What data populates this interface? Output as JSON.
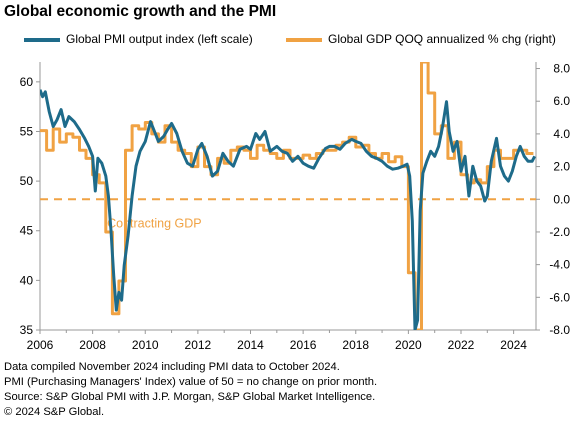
{
  "title": "Global economic growth and the PMI",
  "legend": {
    "pmi": "Global PMI output index (left scale)",
    "gdp": "Global GDP QOQ annualized % chg (right)"
  },
  "colors": {
    "pmi": "#1e6b8a",
    "gdp": "#f0a243",
    "text": "#000000",
    "axis": "#999999"
  },
  "annotation": "Contracting GDP",
  "notes": [
    "Data compiled November 2024 including PMI data to October 2024.",
    "PMI (Purchasing Managers' Index) value of 50 = no change on prior month.",
    "Source: S&P Global PMI with J.P. Morgan, S&P Global Market Intelligence.",
    "© 2024 S&P Global."
  ],
  "chart_data": {
    "type": "line",
    "title": "Global economic growth and the PMI",
    "x_ticks": [
      "2006",
      "2008",
      "2010",
      "2012",
      "2014",
      "2016",
      "2018",
      "2020",
      "2022",
      "2024"
    ],
    "xlim": [
      2006.0,
      2024.85
    ],
    "y_left": {
      "ticks": [
        "35",
        "40",
        "45",
        "50",
        "55",
        "60"
      ],
      "lim": [
        35,
        62
      ]
    },
    "y_right": {
      "ticks": [
        "-8.0",
        "-6.0",
        "-4.0",
        "-2.0",
        "0.0",
        "2.0",
        "4.0",
        "6.0",
        "8.0"
      ],
      "lim": [
        -8,
        8.4
      ]
    },
    "reference_line": {
      "axis": "right",
      "value": 0.0,
      "label": "Contracting GDP"
    },
    "series": [
      {
        "name": "Global PMI output index (left scale)",
        "axis": "left",
        "points": [
          [
            2006.0,
            59.2
          ],
          [
            2006.1,
            58.5
          ],
          [
            2006.2,
            59.0
          ],
          [
            2006.35,
            57.0
          ],
          [
            2006.5,
            55.5
          ],
          [
            2006.65,
            56.2
          ],
          [
            2006.8,
            57.2
          ],
          [
            2006.95,
            55.5
          ],
          [
            2007.1,
            56.5
          ],
          [
            2007.3,
            56.0
          ],
          [
            2007.5,
            55.2
          ],
          [
            2007.7,
            54.3
          ],
          [
            2007.85,
            53.5
          ],
          [
            2008.0,
            52.5
          ],
          [
            2008.1,
            49.0
          ],
          [
            2008.2,
            52.3
          ],
          [
            2008.35,
            51.8
          ],
          [
            2008.5,
            50.5
          ],
          [
            2008.6,
            48.5
          ],
          [
            2008.7,
            45.0
          ],
          [
            2008.8,
            40.5
          ],
          [
            2008.9,
            37.0
          ],
          [
            2009.0,
            38.8
          ],
          [
            2009.1,
            38.0
          ],
          [
            2009.2,
            41.5
          ],
          [
            2009.35,
            44.5
          ],
          [
            2009.5,
            48.5
          ],
          [
            2009.65,
            51.5
          ],
          [
            2009.8,
            53.0
          ],
          [
            2010.0,
            54.0
          ],
          [
            2010.2,
            56.0
          ],
          [
            2010.35,
            55.0
          ],
          [
            2010.5,
            54.0
          ],
          [
            2010.7,
            54.5
          ],
          [
            2010.85,
            55.2
          ],
          [
            2011.0,
            55.8
          ],
          [
            2011.2,
            54.8
          ],
          [
            2011.4,
            53.0
          ],
          [
            2011.6,
            51.8
          ],
          [
            2011.8,
            51.5
          ],
          [
            2012.0,
            53.2
          ],
          [
            2012.15,
            53.8
          ],
          [
            2012.35,
            52.5
          ],
          [
            2012.55,
            50.5
          ],
          [
            2012.75,
            51.0
          ],
          [
            2012.95,
            52.8
          ],
          [
            2013.15,
            52.0
          ],
          [
            2013.35,
            51.5
          ],
          [
            2013.6,
            53.2
          ],
          [
            2013.85,
            53.5
          ],
          [
            2014.0,
            53.2
          ],
          [
            2014.2,
            54.8
          ],
          [
            2014.35,
            54.2
          ],
          [
            2014.55,
            55.0
          ],
          [
            2014.75,
            53.0
          ],
          [
            2015.0,
            53.5
          ],
          [
            2015.2,
            53.0
          ],
          [
            2015.4,
            52.8
          ],
          [
            2015.6,
            52.0
          ],
          [
            2015.8,
            52.5
          ],
          [
            2016.0,
            51.8
          ],
          [
            2016.2,
            51.5
          ],
          [
            2016.4,
            51.3
          ],
          [
            2016.6,
            52.3
          ],
          [
            2016.85,
            53.3
          ],
          [
            2017.0,
            53.5
          ],
          [
            2017.2,
            53.5
          ],
          [
            2017.4,
            53.2
          ],
          [
            2017.6,
            53.8
          ],
          [
            2017.85,
            54.2
          ],
          [
            2018.0,
            54.0
          ],
          [
            2018.2,
            53.8
          ],
          [
            2018.4,
            53.0
          ],
          [
            2018.6,
            52.5
          ],
          [
            2018.8,
            52.3
          ],
          [
            2019.0,
            52.0
          ],
          [
            2019.2,
            51.5
          ],
          [
            2019.4,
            51.2
          ],
          [
            2019.6,
            51.3
          ],
          [
            2019.8,
            51.5
          ],
          [
            2019.95,
            51.7
          ],
          [
            2020.05,
            50.5
          ],
          [
            2020.15,
            46.0
          ],
          [
            2020.25,
            35.0
          ],
          [
            2020.35,
            36.0
          ],
          [
            2020.45,
            47.0
          ],
          [
            2020.55,
            50.8
          ],
          [
            2020.7,
            52.0
          ],
          [
            2020.85,
            53.0
          ],
          [
            2021.0,
            52.5
          ],
          [
            2021.15,
            53.5
          ],
          [
            2021.3,
            55.5
          ],
          [
            2021.45,
            58.0
          ],
          [
            2021.55,
            55.0
          ],
          [
            2021.7,
            53.0
          ],
          [
            2021.85,
            54.0
          ],
          [
            2022.0,
            51.0
          ],
          [
            2022.15,
            52.5
          ],
          [
            2022.3,
            48.5
          ],
          [
            2022.45,
            51.5
          ],
          [
            2022.6,
            50.0
          ],
          [
            2022.75,
            49.5
          ],
          [
            2022.9,
            48.0
          ],
          [
            2023.0,
            48.5
          ],
          [
            2023.15,
            52.0
          ],
          [
            2023.35,
            54.3
          ],
          [
            2023.5,
            51.5
          ],
          [
            2023.65,
            50.5
          ],
          [
            2023.8,
            50.0
          ],
          [
            2023.95,
            51.0
          ],
          [
            2024.1,
            52.5
          ],
          [
            2024.25,
            53.5
          ],
          [
            2024.4,
            52.5
          ],
          [
            2024.55,
            52.0
          ],
          [
            2024.7,
            52.0
          ],
          [
            2024.8,
            52.5
          ]
        ]
      },
      {
        "name": "Global GDP QOQ annualized % chg (right)",
        "axis": "right",
        "points": [
          [
            2006.0,
            4.2
          ],
          [
            2006.25,
            4.2
          ],
          [
            2006.25,
            3.0
          ],
          [
            2006.5,
            3.0
          ],
          [
            2006.5,
            4.3
          ],
          [
            2006.75,
            4.3
          ],
          [
            2006.75,
            3.5
          ],
          [
            2007.0,
            3.5
          ],
          [
            2007.0,
            4.0
          ],
          [
            2007.25,
            4.0
          ],
          [
            2007.25,
            3.8
          ],
          [
            2007.5,
            3.8
          ],
          [
            2007.5,
            3.0
          ],
          [
            2007.75,
            3.0
          ],
          [
            2007.75,
            2.5
          ],
          [
            2008.0,
            2.5
          ],
          [
            2008.0,
            1.5
          ],
          [
            2008.25,
            1.5
          ],
          [
            2008.25,
            1.0
          ],
          [
            2008.5,
            1.0
          ],
          [
            2008.5,
            -2.0
          ],
          [
            2008.75,
            -2.0
          ],
          [
            2008.75,
            -7.0
          ],
          [
            2009.0,
            -7.0
          ],
          [
            2009.0,
            -5.0
          ],
          [
            2009.25,
            -5.0
          ],
          [
            2009.25,
            3.0
          ],
          [
            2009.5,
            3.0
          ],
          [
            2009.5,
            4.5
          ],
          [
            2009.75,
            4.5
          ],
          [
            2009.75,
            4.3
          ],
          [
            2010.0,
            4.3
          ],
          [
            2010.0,
            4.7
          ],
          [
            2010.25,
            4.7
          ],
          [
            2010.25,
            4.0
          ],
          [
            2010.5,
            4.0
          ],
          [
            2010.5,
            3.5
          ],
          [
            2010.75,
            3.5
          ],
          [
            2010.75,
            4.5
          ],
          [
            2011.0,
            4.5
          ],
          [
            2011.0,
            3.5
          ],
          [
            2011.25,
            3.5
          ],
          [
            2011.25,
            3.0
          ],
          [
            2011.5,
            3.0
          ],
          [
            2011.5,
            2.8
          ],
          [
            2011.75,
            2.8
          ],
          [
            2011.75,
            2.0
          ],
          [
            2012.0,
            2.0
          ],
          [
            2012.0,
            3.2
          ],
          [
            2012.25,
            3.2
          ],
          [
            2012.25,
            2.0
          ],
          [
            2012.5,
            2.0
          ],
          [
            2012.5,
            1.5
          ],
          [
            2012.75,
            1.5
          ],
          [
            2012.75,
            2.5
          ],
          [
            2013.0,
            2.5
          ],
          [
            2013.0,
            2.2
          ],
          [
            2013.25,
            2.2
          ],
          [
            2013.25,
            3.0
          ],
          [
            2013.5,
            3.0
          ],
          [
            2013.5,
            3.2
          ],
          [
            2013.75,
            3.2
          ],
          [
            2013.75,
            3.0
          ],
          [
            2014.0,
            3.0
          ],
          [
            2014.0,
            2.5
          ],
          [
            2014.25,
            2.5
          ],
          [
            2014.25,
            3.3
          ],
          [
            2014.5,
            3.3
          ],
          [
            2014.5,
            3.0
          ],
          [
            2014.75,
            3.0
          ],
          [
            2014.75,
            2.8
          ],
          [
            2015.0,
            2.8
          ],
          [
            2015.0,
            2.5
          ],
          [
            2015.25,
            2.5
          ],
          [
            2015.25,
            3.0
          ],
          [
            2015.5,
            3.0
          ],
          [
            2015.5,
            2.5
          ],
          [
            2015.75,
            2.5
          ],
          [
            2015.75,
            2.5
          ],
          [
            2016.0,
            2.5
          ],
          [
            2016.0,
            2.7
          ],
          [
            2016.25,
            2.7
          ],
          [
            2016.25,
            2.5
          ],
          [
            2016.5,
            2.5
          ],
          [
            2016.5,
            2.8
          ],
          [
            2016.75,
            2.8
          ],
          [
            2016.75,
            3.0
          ],
          [
            2017.0,
            3.0
          ],
          [
            2017.0,
            3.0
          ],
          [
            2017.25,
            3.0
          ],
          [
            2017.25,
            3.3
          ],
          [
            2017.5,
            3.3
          ],
          [
            2017.5,
            3.5
          ],
          [
            2017.75,
            3.5
          ],
          [
            2017.75,
            3.8
          ],
          [
            2018.0,
            3.8
          ],
          [
            2018.0,
            3.2
          ],
          [
            2018.25,
            3.2
          ],
          [
            2018.25,
            3.3
          ],
          [
            2018.5,
            3.3
          ],
          [
            2018.5,
            2.8
          ],
          [
            2018.75,
            2.8
          ],
          [
            2018.75,
            2.5
          ],
          [
            2019.0,
            2.5
          ],
          [
            2019.0,
            2.8
          ],
          [
            2019.25,
            2.8
          ],
          [
            2019.25,
            2.3
          ],
          [
            2019.5,
            2.3
          ],
          [
            2019.5,
            2.6
          ],
          [
            2019.75,
            2.6
          ],
          [
            2019.75,
            2.0
          ],
          [
            2020.0,
            2.0
          ],
          [
            2020.0,
            -4.5
          ],
          [
            2020.25,
            -4.5
          ],
          [
            2020.25,
            -8.0
          ],
          [
            2020.5,
            -8.0
          ],
          [
            2020.5,
            8.4
          ],
          [
            2020.75,
            8.4
          ],
          [
            2020.75,
            6.5
          ],
          [
            2021.0,
            6.5
          ],
          [
            2021.0,
            4.0
          ],
          [
            2021.25,
            4.0
          ],
          [
            2021.25,
            4.5
          ],
          [
            2021.5,
            4.5
          ],
          [
            2021.5,
            2.5
          ],
          [
            2021.75,
            2.5
          ],
          [
            2021.75,
            3.5
          ],
          [
            2022.0,
            3.5
          ],
          [
            2022.0,
            1.5
          ],
          [
            2022.25,
            1.5
          ],
          [
            2022.25,
            1.0
          ],
          [
            2022.5,
            1.0
          ],
          [
            2022.5,
            1.2
          ],
          [
            2022.75,
            1.2
          ],
          [
            2022.75,
            1.0
          ],
          [
            2023.0,
            1.0
          ],
          [
            2023.0,
            2.0
          ],
          [
            2023.25,
            2.0
          ],
          [
            2023.25,
            3.0
          ],
          [
            2023.5,
            3.0
          ],
          [
            2023.5,
            2.5
          ],
          [
            2023.75,
            2.5
          ],
          [
            2023.75,
            2.5
          ],
          [
            2024.0,
            2.5
          ],
          [
            2024.0,
            3.0
          ],
          [
            2024.25,
            3.0
          ],
          [
            2024.25,
            3.0
          ],
          [
            2024.5,
            3.0
          ],
          [
            2024.5,
            2.8
          ],
          [
            2024.75,
            2.8
          ]
        ]
      }
    ]
  }
}
